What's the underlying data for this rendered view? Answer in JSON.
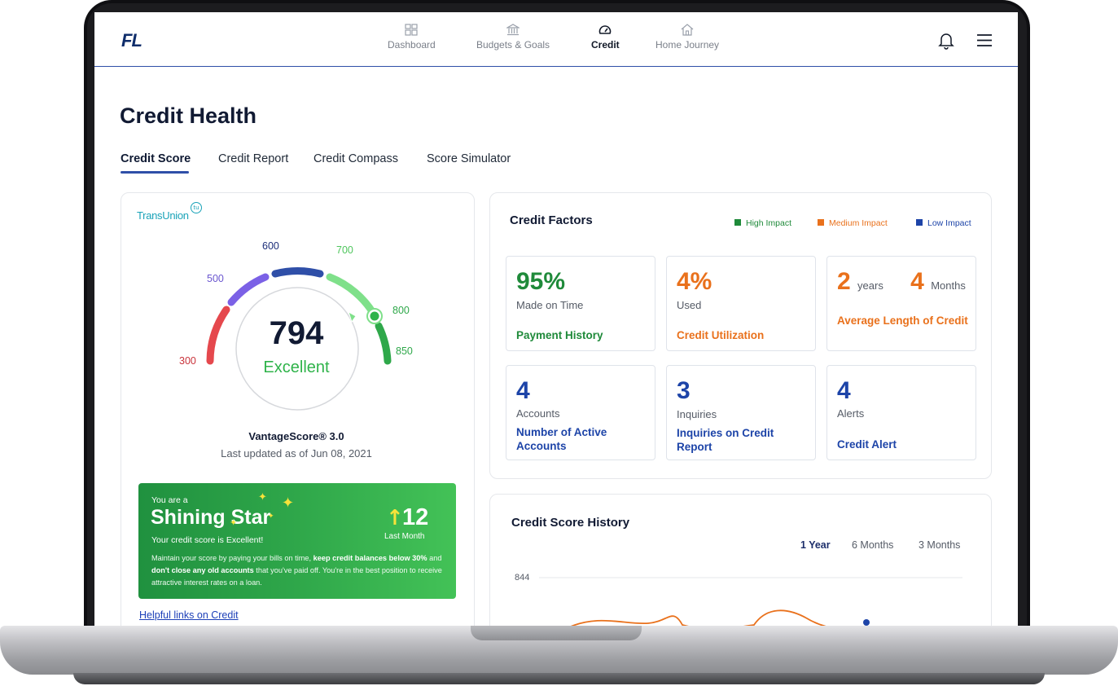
{
  "header": {
    "logo": "FL",
    "nav": [
      {
        "label": "Dashboard",
        "icon": "dashboard-icon",
        "active": false
      },
      {
        "label": "Budgets & Goals",
        "icon": "bank-icon",
        "active": false
      },
      {
        "label": "Credit",
        "icon": "speedometer-icon",
        "active": true
      },
      {
        "label": "Home Journey",
        "icon": "home-icon",
        "active": false
      }
    ],
    "right_icons": [
      "bell-icon",
      "menu-icon"
    ]
  },
  "page": {
    "title": "Credit Health",
    "tabs": [
      "Credit Score",
      "Credit Report",
      "Credit Compass",
      "Score Simulator"
    ],
    "active_tab": "Credit Score"
  },
  "score_card": {
    "bureau": "TransUnion",
    "bureau_badge": "tu",
    "score": "794",
    "rating": "Excellent",
    "gauge_ticks": [
      "300",
      "500",
      "600",
      "700",
      "800",
      "850"
    ],
    "gauge_colors": {
      "low": "#e5484d",
      "fair": "#7b61e6",
      "good": "#2f4fa8",
      "very_good": "#7fe08a",
      "excellent": "#2fa84a"
    },
    "model": "VantageScore® 3.0",
    "updated": "Last updated as of Jun 08, 2021",
    "star": {
      "pre": "You are a",
      "title": "Shining Star",
      "subtitle": "Your credit score is Excellent!",
      "body_1": "Maintain your score by paying your bills on time, ",
      "body_bold_1": "keep credit balances below 30%",
      "body_2": " and ",
      "body_bold_2": "don't close any old accounts",
      "body_3": " that you've paid off. You're in the best position to receive attractive interest rates on a loan.",
      "change": "12",
      "change_label": "Last Month"
    },
    "helpful_link": "Helpful links on Credit"
  },
  "factors": {
    "title": "Credit Factors",
    "legend": [
      {
        "label": "High Impact",
        "color": "#1f8a3a"
      },
      {
        "label": "Medium Impact",
        "color": "#e9711c"
      },
      {
        "label": "Low Impact",
        "color": "#1d44a8"
      }
    ],
    "items": [
      {
        "value": "95%",
        "desc": "Made on Time",
        "name": "Payment History",
        "impact": "high"
      },
      {
        "value": "4%",
        "desc": "Used",
        "name": "Credit Utilization",
        "impact": "medium"
      },
      {
        "value_a": "2",
        "unit_a": "years",
        "value_b": "4",
        "unit_b": "Months",
        "name": "Average Length of Credit",
        "impact": "medium"
      },
      {
        "value": "4",
        "desc": "Accounts",
        "name": "Number of Active Accounts",
        "impact": "low"
      },
      {
        "value": "3",
        "desc": "Inquiries",
        "name": "Inquiries on Credit Report",
        "impact": "low"
      },
      {
        "value": "4",
        "desc": "Alerts",
        "name": "Credit Alert",
        "impact": "low"
      }
    ]
  },
  "history": {
    "title": "Credit Score History",
    "ranges": [
      "1 Year",
      "6 Months",
      "3 Months"
    ],
    "active_range": "1 Year",
    "y_max_label": "844"
  }
}
